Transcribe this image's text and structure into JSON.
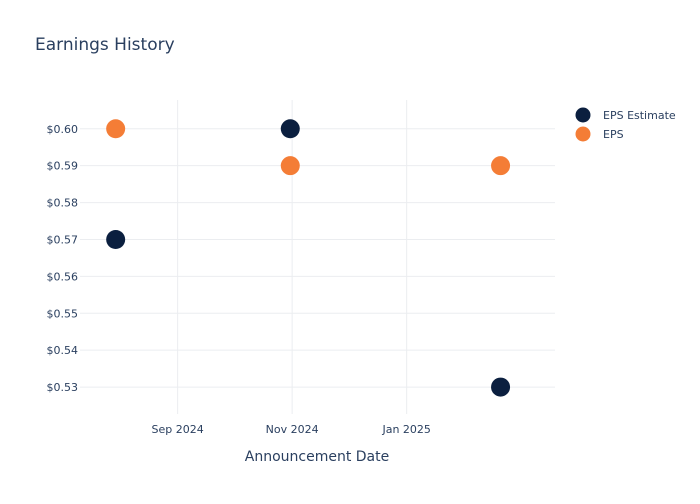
{
  "chart_data": {
    "type": "scatter",
    "title": "Earnings History",
    "xlabel": "Announcement Date",
    "ylabel": "",
    "x_ticks": [
      {
        "date": "2024-09-01",
        "label": "Sep 2024"
      },
      {
        "date": "2024-11-01",
        "label": "Nov 2024"
      },
      {
        "date": "2025-01-01",
        "label": "Jan 2025"
      }
    ],
    "y_ticks": [
      {
        "value": 0.53,
        "label": "$0.53"
      },
      {
        "value": 0.54,
        "label": "$0.54"
      },
      {
        "value": 0.55,
        "label": "$0.55"
      },
      {
        "value": 0.56,
        "label": "$0.56"
      },
      {
        "value": 0.57,
        "label": "$0.57"
      },
      {
        "value": 0.58,
        "label": "$0.58"
      },
      {
        "value": 0.59,
        "label": "$0.59"
      },
      {
        "value": 0.6,
        "label": "$0.60"
      }
    ],
    "xlim": [
      "2024-07-11",
      "2025-03-21"
    ],
    "ylim": [
      0.5227,
      0.6078
    ],
    "grid": true,
    "legend_position": "top-right",
    "series": [
      {
        "name": "EPS Estimate",
        "color": "#0b1f3f",
        "points": [
          {
            "x": "2024-07-30",
            "y": 0.57
          },
          {
            "x": "2024-10-31",
            "y": 0.6
          },
          {
            "x": "2025-02-20",
            "y": 0.53
          }
        ]
      },
      {
        "name": "EPS",
        "color": "#f47d36",
        "points": [
          {
            "x": "2024-07-30",
            "y": 0.6
          },
          {
            "x": "2024-10-31",
            "y": 0.59
          },
          {
            "x": "2025-02-20",
            "y": 0.59
          }
        ]
      }
    ]
  }
}
